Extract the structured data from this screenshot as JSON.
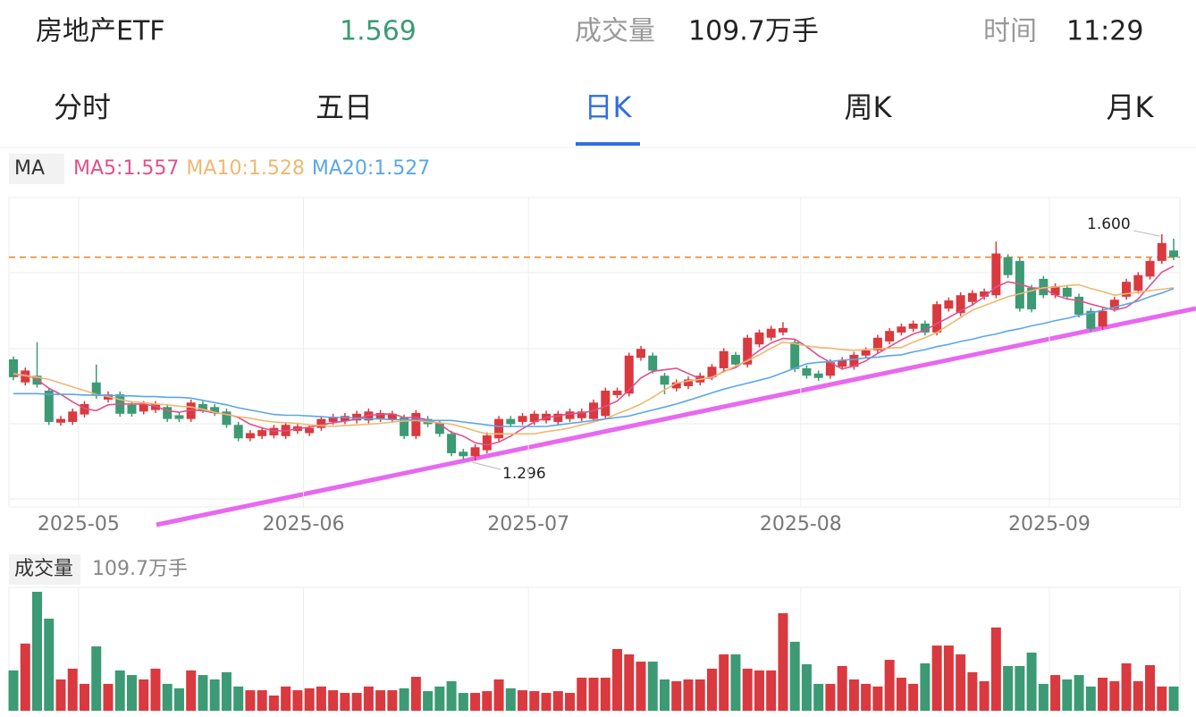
{
  "header": {
    "name": "房地产ETF",
    "volume_label": "成交量",
    "volume_value": "109.7万手",
    "time_label": "时间",
    "time": "11:29"
  },
  "tabs": [
    "分时",
    "五日",
    "日K",
    "周K",
    "月K"
  ],
  "active_tab": 2,
  "chart_data": {
    "type": "candlestick",
    "legend_title": "MA",
    "last_price": 1.569,
    "up_color": "#d9393f",
    "down_color": "#3c9a74",
    "ylim": [
      1.234,
      1.649
    ],
    "xticks": [
      {
        "value": 6,
        "label": "2025-05"
      },
      {
        "value": 25,
        "label": "2025-06"
      },
      {
        "value": 44,
        "label": "2025-07"
      },
      {
        "value": 67,
        "label": "2025-08"
      },
      {
        "value": 88,
        "label": "2025-09"
      }
    ],
    "annotations": [
      "1.600",
      "1.296"
    ],
    "categories": [
      null,
      null,
      null,
      null,
      null,
      null,
      null,
      null,
      null,
      null,
      null,
      null,
      null,
      null,
      null,
      null,
      null,
      null,
      null,
      null,
      null,
      null,
      null,
      null,
      null,
      null,
      null,
      null,
      null,
      null,
      null,
      null,
      null,
      null,
      null,
      null,
      null,
      null,
      null,
      null,
      null,
      null,
      null,
      null,
      null,
      null,
      null,
      null,
      null,
      null,
      null,
      null,
      null,
      null,
      null,
      null,
      null,
      null,
      null,
      null,
      null,
      null,
      null,
      null,
      null,
      null,
      null,
      null,
      null,
      null,
      null,
      null,
      null,
      null,
      null,
      null,
      null,
      null,
      null,
      null,
      null,
      null,
      null,
      null,
      null,
      null,
      null,
      null,
      null,
      null,
      null,
      null,
      null,
      null,
      null,
      null,
      null,
      null,
      null
    ],
    "open": [
      1.432,
      1.401,
      1.41,
      1.39,
      1.347,
      1.348,
      1.358,
      1.401,
      1.378,
      1.385,
      1.371,
      1.362,
      1.364,
      1.368,
      1.357,
      1.352,
      1.372,
      1.368,
      1.362,
      1.344,
      1.326,
      1.329,
      1.33,
      1.329,
      1.336,
      1.333,
      1.34,
      1.348,
      1.349,
      1.35,
      1.35,
      1.352,
      1.351,
      1.354,
      1.329,
      1.352,
      1.346,
      1.332,
      1.308,
      1.302,
      1.31,
      1.326,
      1.352,
      1.348,
      1.348,
      1.35,
      1.348,
      1.352,
      1.353,
      1.352,
      1.356,
      1.384,
      1.386,
      1.434,
      1.437,
      1.41,
      1.393,
      1.396,
      1.401,
      1.408,
      1.42,
      1.438,
      1.425,
      1.452,
      1.461,
      1.468,
      1.455,
      1.42,
      1.413,
      1.41,
      1.422,
      1.422,
      1.437,
      1.444,
      1.456,
      1.468,
      1.473,
      1.48,
      1.468,
      1.5,
      1.494,
      1.509,
      1.516,
      1.518,
      1.569,
      1.564,
      1.528,
      1.54,
      1.518,
      1.528,
      1.516,
      1.497,
      1.476,
      1.5,
      1.516,
      1.524,
      1.543,
      1.564,
      1.578
    ],
    "high": [
      1.436,
      1.421,
      1.455,
      1.394,
      1.356,
      1.366,
      1.376,
      1.425,
      1.389,
      1.389,
      1.375,
      1.376,
      1.376,
      1.372,
      1.361,
      1.378,
      1.376,
      1.372,
      1.366,
      1.348,
      1.337,
      1.341,
      1.344,
      1.348,
      1.346,
      1.344,
      1.356,
      1.359,
      1.36,
      1.363,
      1.366,
      1.364,
      1.363,
      1.358,
      1.364,
      1.356,
      1.35,
      1.336,
      1.312,
      1.318,
      1.334,
      1.356,
      1.356,
      1.36,
      1.363,
      1.363,
      1.363,
      1.366,
      1.366,
      1.378,
      1.394,
      1.394,
      1.441,
      1.45,
      1.441,
      1.414,
      1.405,
      1.409,
      1.414,
      1.426,
      1.447,
      1.442,
      1.465,
      1.472,
      1.477,
      1.482,
      1.459,
      1.424,
      1.417,
      1.432,
      1.435,
      1.442,
      1.448,
      1.465,
      1.474,
      1.48,
      1.484,
      1.484,
      1.51,
      1.515,
      1.522,
      1.525,
      1.527,
      1.59,
      1.573,
      1.568,
      1.532,
      1.544,
      1.534,
      1.532,
      1.52,
      1.501,
      1.501,
      1.516,
      1.54,
      1.549,
      1.568,
      1.6,
      1.594
    ],
    "low": [
      1.404,
      1.397,
      1.394,
      1.344,
      1.343,
      1.344,
      1.354,
      1.379,
      1.374,
      1.355,
      1.355,
      1.358,
      1.36,
      1.348,
      1.348,
      1.348,
      1.36,
      1.356,
      1.34,
      1.322,
      1.322,
      1.325,
      1.326,
      1.325,
      1.332,
      1.329,
      1.336,
      1.344,
      1.345,
      1.346,
      1.346,
      1.348,
      1.347,
      1.325,
      1.325,
      1.341,
      1.328,
      1.302,
      1.298,
      1.296,
      1.306,
      1.322,
      1.341,
      1.344,
      1.344,
      1.346,
      1.344,
      1.348,
      1.349,
      1.348,
      1.352,
      1.38,
      1.382,
      1.43,
      1.413,
      1.385,
      1.389,
      1.392,
      1.397,
      1.404,
      1.416,
      1.421,
      1.421,
      1.448,
      1.457,
      1.464,
      1.415,
      1.406,
      1.403,
      1.406,
      1.418,
      1.418,
      1.433,
      1.44,
      1.452,
      1.464,
      1.469,
      1.464,
      1.464,
      1.496,
      1.49,
      1.505,
      1.512,
      1.514,
      1.541,
      1.496,
      1.495,
      1.514,
      1.514,
      1.512,
      1.488,
      1.469,
      1.472,
      1.496,
      1.512,
      1.52,
      1.539,
      1.56,
      1.565
    ],
    "close": [
      1.408,
      1.417,
      1.398,
      1.348,
      1.352,
      1.362,
      1.372,
      1.383,
      1.385,
      1.359,
      1.359,
      1.372,
      1.372,
      1.352,
      1.352,
      1.374,
      1.364,
      1.36,
      1.344,
      1.326,
      1.333,
      1.337,
      1.34,
      1.344,
      1.342,
      1.34,
      1.352,
      1.355,
      1.356,
      1.359,
      1.362,
      1.36,
      1.359,
      1.329,
      1.36,
      1.345,
      1.332,
      1.306,
      1.302,
      1.314,
      1.33,
      1.352,
      1.345,
      1.356,
      1.359,
      1.359,
      1.359,
      1.362,
      1.362,
      1.374,
      1.39,
      1.39,
      1.437,
      1.446,
      1.417,
      1.398,
      1.401,
      1.405,
      1.41,
      1.422,
      1.443,
      1.425,
      1.461,
      1.468,
      1.473,
      1.474,
      1.419,
      1.41,
      1.407,
      1.428,
      1.431,
      1.438,
      1.444,
      1.461,
      1.47,
      1.476,
      1.48,
      1.468,
      1.506,
      1.511,
      1.518,
      1.521,
      1.523,
      1.574,
      1.545,
      1.5,
      1.499,
      1.518,
      1.53,
      1.516,
      1.492,
      1.473,
      1.497,
      1.512,
      1.536,
      1.545,
      1.564,
      1.588,
      1.569
    ],
    "series": [
      {
        "name": "MA5:1.557",
        "color": "#e0508a",
        "values": [
          1.41,
          1.412,
          1.405,
          1.393,
          1.385,
          1.375,
          1.366,
          1.363,
          1.371,
          1.372,
          1.372,
          1.372,
          1.369,
          1.363,
          1.361,
          1.364,
          1.363,
          1.36,
          1.359,
          1.354,
          1.345,
          1.34,
          1.336,
          1.336,
          1.339,
          1.341,
          1.344,
          1.347,
          1.349,
          1.352,
          1.357,
          1.358,
          1.359,
          1.354,
          1.354,
          1.351,
          1.345,
          1.334,
          1.329,
          1.32,
          1.317,
          1.321,
          1.329,
          1.339,
          1.348,
          1.354,
          1.356,
          1.359,
          1.36,
          1.363,
          1.369,
          1.376,
          1.391,
          1.407,
          1.416,
          1.418,
          1.42,
          1.413,
          1.406,
          1.407,
          1.416,
          1.421,
          1.432,
          1.444,
          1.454,
          1.46,
          1.459,
          1.449,
          1.437,
          1.428,
          1.419,
          1.423,
          1.43,
          1.44,
          1.449,
          1.458,
          1.466,
          1.471,
          1.48,
          1.488,
          1.497,
          1.505,
          1.516,
          1.529,
          1.536,
          1.533,
          1.528,
          1.527,
          1.518,
          1.513,
          1.511,
          1.506,
          1.502,
          1.498,
          1.502,
          1.513,
          1.531,
          1.549,
          1.557
        ]
      },
      {
        "name": "MA10:1.528",
        "color": "#f0b870",
        "values": [
          1.413,
          1.41,
          1.408,
          1.405,
          1.4,
          1.395,
          1.39,
          1.385,
          1.382,
          1.378,
          1.375,
          1.374,
          1.372,
          1.371,
          1.369,
          1.368,
          1.365,
          1.361,
          1.358,
          1.355,
          1.353,
          1.35,
          1.348,
          1.347,
          1.346,
          1.344,
          1.343,
          1.342,
          1.343,
          1.344,
          1.345,
          1.346,
          1.348,
          1.349,
          1.35,
          1.348,
          1.347,
          1.345,
          1.341,
          1.336,
          1.332,
          1.332,
          1.332,
          1.332,
          1.332,
          1.335,
          1.337,
          1.34,
          1.344,
          1.348,
          1.352,
          1.359,
          1.365,
          1.372,
          1.381,
          1.391,
          1.4,
          1.403,
          1.405,
          1.408,
          1.415,
          1.423,
          1.43,
          1.438,
          1.447,
          1.455,
          1.453,
          1.45,
          1.448,
          1.447,
          1.445,
          1.444,
          1.445,
          1.446,
          1.447,
          1.448,
          1.455,
          1.461,
          1.468,
          1.478,
          1.488,
          1.498,
          1.504,
          1.51,
          1.516,
          1.52,
          1.524,
          1.528,
          1.529,
          1.531,
          1.532,
          1.527,
          1.523,
          1.518,
          1.52,
          1.522,
          1.524,
          1.526,
          1.528
        ]
      },
      {
        "name": "MA20:1.527",
        "color": "#5aa7e8",
        "values": [
          1.386,
          1.386,
          1.386,
          1.385,
          1.385,
          1.385,
          1.384,
          1.384,
          1.384,
          1.383,
          1.383,
          1.382,
          1.382,
          1.381,
          1.381,
          1.38,
          1.377,
          1.374,
          1.371,
          1.367,
          1.364,
          1.361,
          1.358,
          1.357,
          1.357,
          1.356,
          1.355,
          1.354,
          1.354,
          1.353,
          1.352,
          1.352,
          1.351,
          1.351,
          1.351,
          1.35,
          1.35,
          1.35,
          1.348,
          1.346,
          1.344,
          1.342,
          1.342,
          1.342,
          1.342,
          1.342,
          1.344,
          1.346,
          1.348,
          1.35,
          1.352,
          1.354,
          1.356,
          1.36,
          1.364,
          1.368,
          1.372,
          1.377,
          1.382,
          1.387,
          1.392,
          1.396,
          1.4,
          1.404,
          1.408,
          1.414,
          1.42,
          1.426,
          1.428,
          1.429,
          1.431,
          1.432,
          1.434,
          1.435,
          1.437,
          1.438,
          1.442,
          1.445,
          1.449,
          1.452,
          1.456,
          1.459,
          1.463,
          1.466,
          1.47,
          1.473,
          1.477,
          1.48,
          1.484,
          1.487,
          1.491,
          1.494,
          1.498,
          1.502,
          1.506,
          1.51,
          1.516,
          1.521,
          1.527
        ]
      }
    ],
    "volume": {
      "label": "成交量",
      "value_label": "109.7万手",
      "ylim": [
        0,
        560
      ],
      "values": [
        183,
        305,
        540,
        418,
        142,
        191,
        122,
        292,
        122,
        183,
        162,
        142,
        191,
        122,
        102,
        183,
        162,
        142,
        175,
        110,
        93,
        93,
        69,
        110,
        93,
        102,
        110,
        93,
        81,
        81,
        110,
        93,
        93,
        102,
        154,
        89,
        110,
        134,
        81,
        81,
        89,
        142,
        102,
        93,
        89,
        81,
        89,
        81,
        150,
        150,
        150,
        280,
        256,
        223,
        223,
        142,
        134,
        142,
        142,
        191,
        256,
        256,
        191,
        183,
        183,
        443,
        313,
        211,
        122,
        122,
        203,
        142,
        122,
        110,
        231,
        150,
        122,
        215,
        296,
        296,
        256,
        175,
        134,
        378,
        203,
        203,
        264,
        122,
        162,
        142,
        162,
        110,
        150,
        134,
        215,
        134,
        207,
        110,
        109.7
      ]
    }
  }
}
